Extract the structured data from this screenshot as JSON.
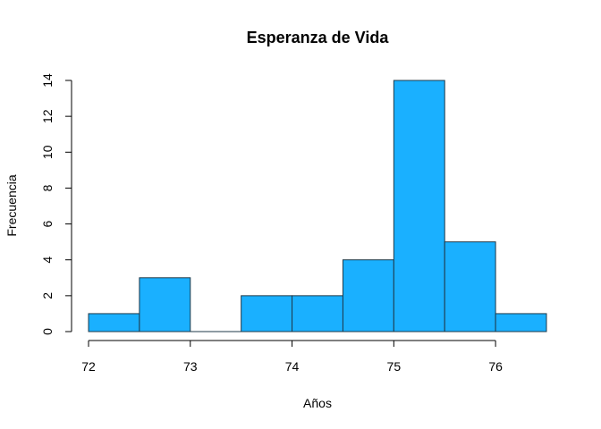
{
  "chart_data": {
    "type": "bar",
    "title": "Esperanza de Vida",
    "xlabel": "Años",
    "ylabel": "Frecuencia",
    "bins": [
      {
        "x0": 72.0,
        "x1": 72.5,
        "count": 1
      },
      {
        "x0": 72.5,
        "x1": 73.0,
        "count": 3
      },
      {
        "x0": 73.0,
        "x1": 73.5,
        "count": 0
      },
      {
        "x0": 73.5,
        "x1": 74.0,
        "count": 2
      },
      {
        "x0": 74.0,
        "x1": 74.5,
        "count": 2
      },
      {
        "x0": 74.5,
        "x1": 75.0,
        "count": 4
      },
      {
        "x0": 75.0,
        "x1": 75.5,
        "count": 14
      },
      {
        "x0": 75.5,
        "x1": 76.0,
        "count": 5
      },
      {
        "x0": 76.0,
        "x1": 76.5,
        "count": 1
      }
    ],
    "xlim": [
      72,
      76.5
    ],
    "ylim": [
      0,
      14
    ],
    "xticks": [
      72,
      73,
      74,
      75,
      76
    ],
    "yticks": [
      0,
      2,
      4,
      6,
      8,
      10,
      12,
      14
    ],
    "bar_color": "#1AB0FF",
    "grid": false
  }
}
